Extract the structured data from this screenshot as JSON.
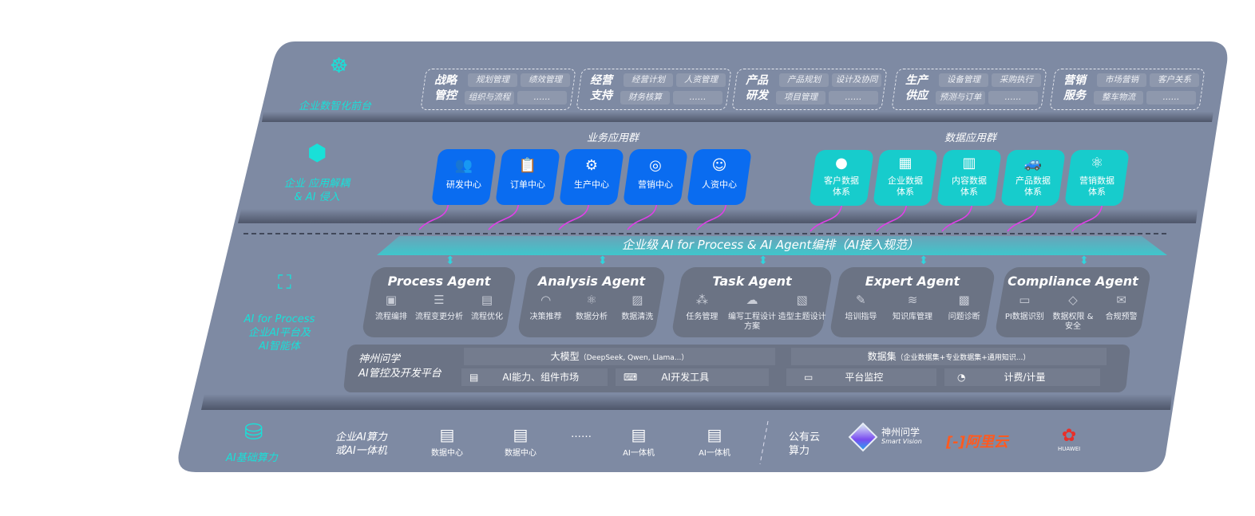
{
  "colors": {
    "panel": "#7e8aa3",
    "accent_teal": "#19e0d8",
    "business_card": "#0a6cf0",
    "data_card": "#17cccc",
    "arrow_magenta": "#e040e8"
  },
  "layers": {
    "front": {
      "label": "企业数智化前台",
      "icon": "brain-icon"
    },
    "apps": {
      "label_line1": "企业 应用解耦",
      "label_line2": "& AI 侵入",
      "icon": "molecule-hub-icon"
    },
    "ai": {
      "label_line1": "AI for Process",
      "label_line2": "企业AI平台及",
      "label_line3": "AI智能体",
      "icon": "face-scan-icon"
    },
    "infra": {
      "label": "AI基础算力",
      "icon": "database-icon"
    }
  },
  "front_groups": [
    {
      "title1": "战略",
      "title2": "管控",
      "items": [
        "规划管理",
        "绩效管理",
        "组织与流程",
        "……"
      ]
    },
    {
      "title1": "经营",
      "title2": "支持",
      "items": [
        "经营计划",
        "人资管理",
        "财务核算",
        "……"
      ]
    },
    {
      "title1": "产品",
      "title2": "研发",
      "items": [
        "产品规划",
        "设计及协同",
        "项目管理",
        "……"
      ]
    },
    {
      "title1": "生产",
      "title2": "供应",
      "items": [
        "设备管理",
        "采购执行",
        "预测与订单",
        "……"
      ]
    },
    {
      "title1": "营销",
      "title2": "服务",
      "items": [
        "市场营销",
        "客户关系",
        "整车物流",
        "……"
      ]
    }
  ],
  "business_apps": {
    "title": "业务应用群",
    "items": [
      {
        "label": "研发中心",
        "icon": "team-icon"
      },
      {
        "label": "订单中心",
        "icon": "clipboard-icon"
      },
      {
        "label": "生产中心",
        "icon": "factory-icon"
      },
      {
        "label": "营销中心",
        "icon": "target-icon"
      },
      {
        "label": "人资中心",
        "icon": "person-wave-icon"
      }
    ]
  },
  "data_apps": {
    "title": "数据应用群",
    "items": [
      {
        "l1": "客户数据",
        "l2": "体系",
        "icon": "user-icon"
      },
      {
        "l1": "企业数据",
        "l2": "体系",
        "icon": "building-icon"
      },
      {
        "l1": "内容数据",
        "l2": "体系",
        "icon": "books-icon"
      },
      {
        "l1": "产品数据",
        "l2": "体系",
        "icon": "car-icon"
      },
      {
        "l1": "营销数据",
        "l2": "体系",
        "icon": "atom-icon"
      }
    ]
  },
  "orchestration": {
    "title": "企业级 AI for Process & AI Agent编排（AI接入规范）"
  },
  "agents": [
    {
      "name": "Process Agent",
      "items": [
        {
          "label": "流程编排",
          "icon": "chart-window-icon"
        },
        {
          "label": "流程变更分析",
          "icon": "list-icon"
        },
        {
          "label": "流程优化",
          "icon": "stack-sparkle-icon"
        }
      ]
    },
    {
      "name": "Analysis Agent",
      "items": [
        {
          "label": "决策推荐",
          "icon": "head-icon"
        },
        {
          "label": "数据分析",
          "icon": "atom-icon"
        },
        {
          "label": "数据清洗",
          "icon": "doc-search-icon"
        }
      ]
    },
    {
      "name": "Task Agent",
      "items": [
        {
          "label": "任务管理",
          "icon": "network-icon"
        },
        {
          "label": "编写工程设计方案",
          "icon": "cloud-doc-icon"
        },
        {
          "label": "造型主题设计",
          "icon": "checklist-clock-icon"
        }
      ]
    },
    {
      "name": "Expert Agent",
      "items": [
        {
          "label": "培训指导",
          "icon": "pen-ruler-icon"
        },
        {
          "label": "知识库管理",
          "icon": "layers-icon"
        },
        {
          "label": "问题诊断",
          "icon": "diagnose-icon"
        }
      ]
    },
    {
      "name": "Compliance Agent",
      "items": [
        {
          "label": "PI数据识别",
          "icon": "id-card-icon"
        },
        {
          "label": "数据权限 & 安全",
          "icon": "shield-link-icon"
        },
        {
          "label": "合规预警",
          "icon": "alert-mail-icon"
        }
      ]
    }
  ],
  "platform": {
    "title1": "神州问学",
    "title2": "AI管控及开发平台",
    "model_label": "大模型",
    "model_note": "（DeepSeek, Qwen, Llama...）",
    "dataset_label": "数据集",
    "dataset_note": "（企业数据集+专业数据集+通用知识...）",
    "tools": [
      {
        "label": "AI能力、组件市场",
        "icon": "market-icon"
      },
      {
        "label": "AI开发工具",
        "icon": "dev-tool-icon"
      },
      {
        "label": "平台监控",
        "icon": "monitor-icon"
      },
      {
        "label": "计费/计量",
        "icon": "gauge-icon"
      }
    ]
  },
  "infra": {
    "enterprise_label1": "企业AI算力",
    "enterprise_label2": "或AI一体机",
    "servers": [
      {
        "label": "数据中心",
        "icon": "server-icon"
      },
      {
        "label": "数据中心",
        "icon": "server-icon"
      },
      {
        "label": "……",
        "icon": ""
      },
      {
        "label": "AI一体机",
        "icon": "server-icon"
      },
      {
        "label": "AI一体机",
        "icon": "server-icon"
      }
    ],
    "public_label1": "公有云",
    "public_label2": "算力",
    "vendors": [
      {
        "name": "神州问学",
        "sub": "Smart Vision"
      },
      {
        "name": "阿里云"
      },
      {
        "name": "HUAWEI"
      }
    ]
  }
}
